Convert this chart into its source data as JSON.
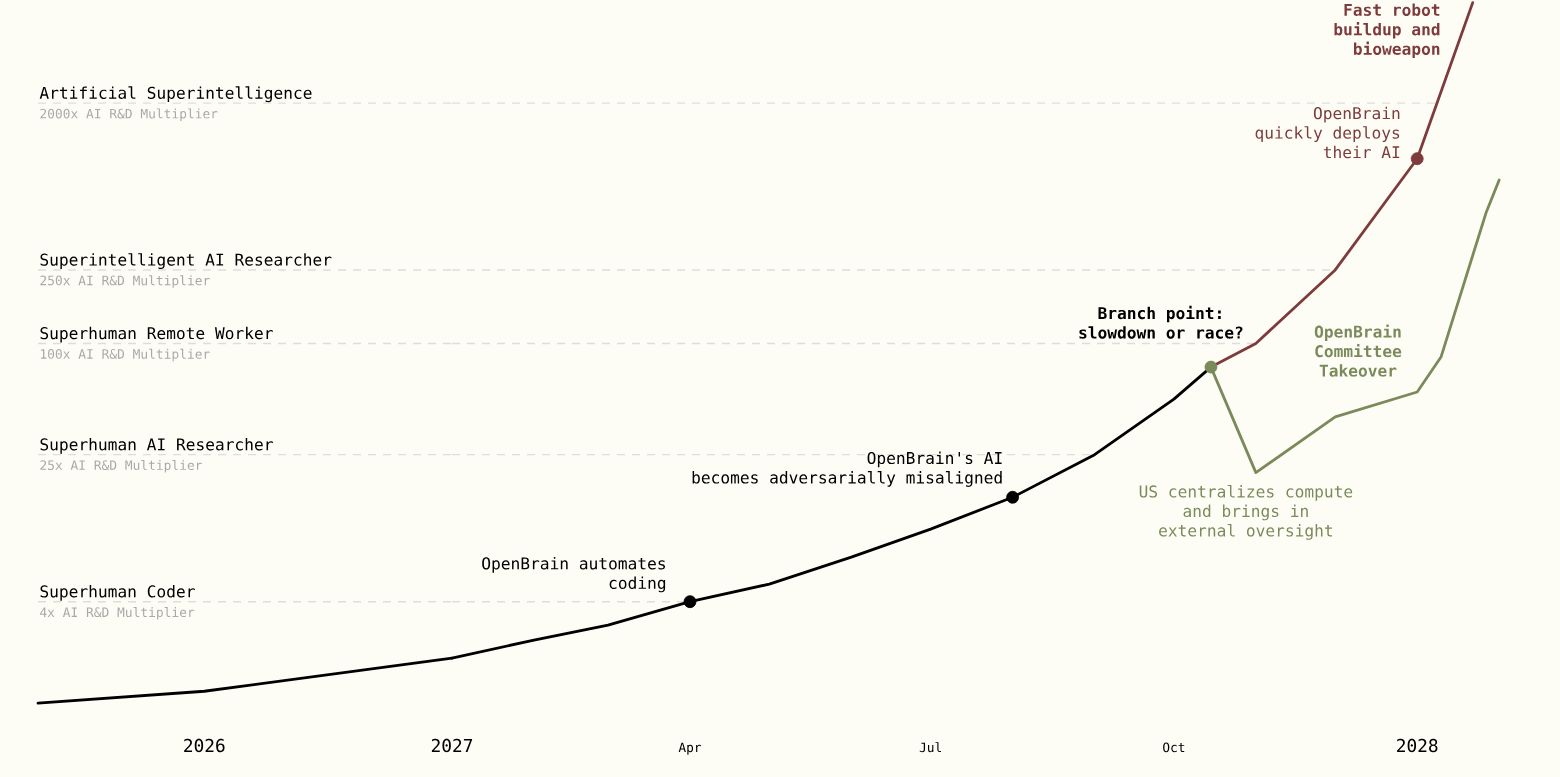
{
  "chart_data": [
    {
      "type": "line",
      "xlim": [
        "2025-05-01",
        "2027-01-01"
      ],
      "xticks": [
        "2026",
        "2027"
      ],
      "ylim": [
        0.45,
        7000
      ],
      "log": "y",
      "yticks": [
        {
          "value": 4,
          "label": "4x AI R&D Multiplier"
        },
        {
          "value": 25,
          "label": "25x AI R&D Multiplier"
        },
        {
          "value": 100,
          "label": "100x AI R&D Multiplier"
        },
        {
          "value": 250,
          "label": "250x AI R&D Multiplier"
        },
        {
          "value": 2000,
          "label": "2000x AI R&D Multiplier"
        }
      ],
      "ref_lines": [
        {
          "axis": "y",
          "value": 4,
          "label": "Superhuman Coder",
          "color": "#dddddd",
          "line_style": "dashed"
        },
        {
          "axis": "y",
          "value": 25,
          "label": "Superhuman AI Researcher",
          "color": "#dddddd",
          "line_style": "dashed"
        },
        {
          "axis": "y",
          "value": 100,
          "label": "Superhuman Remote Worker",
          "color": "#dddddd",
          "line_style": "dashed"
        },
        {
          "axis": "y",
          "value": 250,
          "label": "Superintelligent AI Researcher",
          "color": "#dddddd",
          "line_style": "dashed"
        },
        {
          "axis": "y",
          "value": 2000,
          "label": "Artificial Superintelligence",
          "color": "#dddddd",
          "line_style": "dashed"
        }
      ],
      "series": [
        {
          "color": "#000000",
          "x": [
            "2025-05-01",
            "2026-01-01",
            "2027-01-01"
          ],
          "values": [
            1.13,
            1.31,
            1.98
          ]
        }
      ]
    },
    {
      "type": "line",
      "xlim": [
        "2027-01-01",
        "2028-02-24"
      ],
      "xticks": [
        {
          "value": "2027-04",
          "label": "Apr"
        },
        {
          "value": "2027-07",
          "label": "Jul"
        },
        {
          "value": "2027-10",
          "label": "Oct"
        },
        "2028"
      ],
      "ylim": [
        0.45,
        7000
      ],
      "log": "y",
      "tick_labels": "x",
      "ref_lines": [
        {
          "axis": "y",
          "value": 4,
          "color": "#dddddd",
          "line_style": "dashed"
        },
        {
          "axis": "y",
          "value": 25,
          "color": "#dddddd",
          "line_style": "dashed"
        },
        {
          "axis": "y",
          "value": 100,
          "color": "#dddddd",
          "line_style": "dashed"
        },
        {
          "axis": "y",
          "value": 250,
          "color": "#dddddd",
          "line_style": "dashed"
        },
        {
          "axis": "y",
          "value": 2000,
          "color": "#dddddd",
          "line_style": "dashed"
        }
      ],
      "series": [
        {
          "color": "#000000",
          "x": [
            "2027-01-01",
            "2027-02-01",
            "2027-03-01",
            "2027-04-01",
            "2027-05-01",
            "2027-06-01",
            "2027-07-01",
            "2027-08-01",
            "2027-09-01",
            "2027-10-01",
            "2027-10-15"
          ],
          "values": [
            1.98,
            2.48,
            2.99,
            4,
            4.98,
            6.97,
            9.89,
            14.7,
            25,
            50,
            74.5
          ]
        },
        {
          "name": "Fast robot buildup and bioweapon",
          "color": "#7d3b3b",
          "x": [
            "2027-10-15",
            "2027-11-01",
            "2027-12-01",
            "2028-01-01",
            "2028-01-22"
          ],
          "values": [
            74.5,
            100,
            250,
            1000,
            7000
          ]
        },
        {
          "name": "OpenBrain Committee Takeover",
          "color": "#7a8a5a",
          "x": [
            "2027-10-15",
            "2027-11-01",
            "2027-12-01",
            "2028-01-01",
            "2028-01-10",
            "2028-01-27",
            "2028-02-01"
          ],
          "values": [
            74.5,
            20,
            40,
            54.6,
            84.4,
            508,
            767
          ]
        },
        {
          "type": "scatter",
          "marker": "circle",
          "x": [
            "2027-04-01",
            "2027-08-01",
            "2027-10-15",
            "2028-01-01"
          ],
          "values": [
            4,
            14.7,
            74.5,
            1000
          ],
          "colors": [
            "#000000",
            "#000000",
            "#7a8a5a",
            "#7d3b3b"
          ]
        }
      ],
      "annotations": [
        {
          "text": "OpenBrain automates coding",
          "x": "2027-04-01",
          "y": 4
        },
        {
          "text": "OpenBrain's AI becomes adversarially misaligned",
          "x": "2027-08-01",
          "y": 14.7
        },
        {
          "text": "Branch point: slowdown or race?",
          "x": "2027-10-15",
          "y": 74.5
        },
        {
          "text": "OpenBrain quickly deploys their AI",
          "x": "2028-01-01",
          "y": 1000
        },
        {
          "text": "US centralizes compute and brings in external oversight",
          "x": "2027-11-01",
          "y": 20
        }
      ]
    }
  ]
}
